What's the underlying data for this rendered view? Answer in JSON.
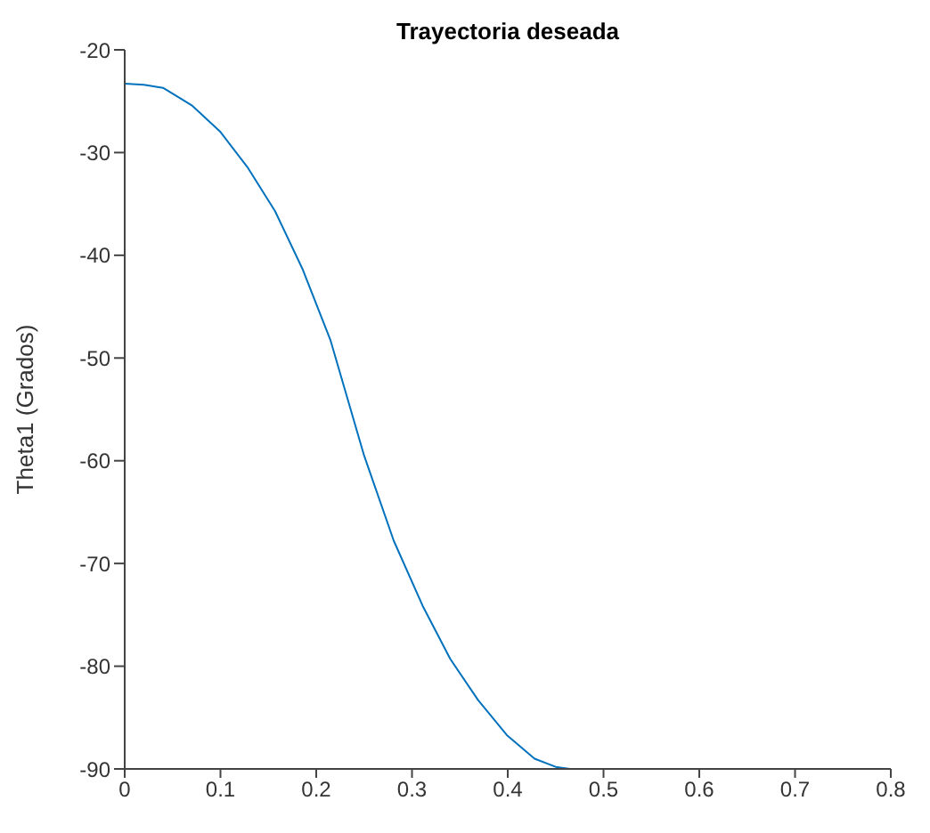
{
  "chart_data": {
    "type": "line",
    "title": "Trayectoria deseada",
    "ylabel": "Theta1 (Grados)",
    "x": [
      0,
      0.02,
      0.04,
      0.07,
      0.1,
      0.128,
      0.157,
      0.186,
      0.215,
      0.25,
      0.281,
      0.311,
      0.34,
      0.369,
      0.399,
      0.428,
      0.45,
      0.465
    ],
    "series": [
      {
        "color": "#0072bd",
        "values": [
          -23.3,
          -23.4,
          -23.7,
          -25.4,
          -28,
          -31.4,
          -35.7,
          -41.4,
          -48.3,
          -59.5,
          -67.8,
          -74.1,
          -79.3,
          -83.3,
          -86.7,
          -89,
          -89.8,
          -90
        ]
      }
    ],
    "xlim": [
      0,
      0.8
    ],
    "xticks": [
      0,
      0.1,
      0.2,
      0.3,
      0.4,
      0.5,
      0.6,
      0.7,
      0.8
    ],
    "ylim": [
      -90,
      -20
    ],
    "yticks": [
      -90,
      -80,
      -70,
      -60,
      -50,
      -40,
      -30,
      -20
    ],
    "grid": false,
    "legend": false
  }
}
